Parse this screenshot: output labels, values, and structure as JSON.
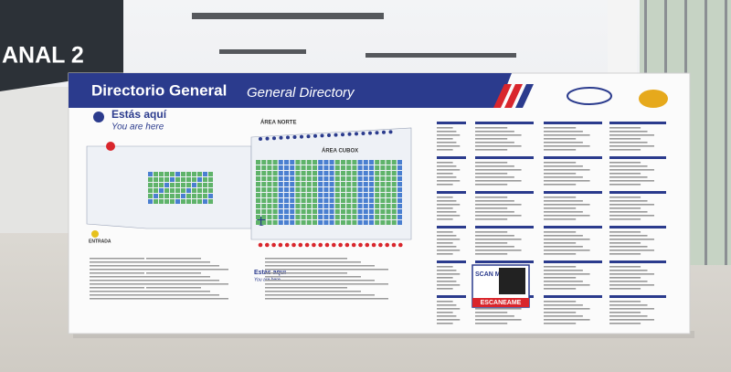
{
  "sign": {
    "text": "ANAL 2"
  },
  "board": {
    "title": "Directorio General",
    "subtitle": "General Directory",
    "you_are_here": {
      "es": "Estás aquí",
      "en": "You are here"
    },
    "map": {
      "north": "ÁREA NORTE",
      "center": "ÁREA CUBOX",
      "entrance": "ENTRADA"
    },
    "lower_you_are_here": {
      "es": "Estás aquí",
      "en": "You are here"
    },
    "qr": {
      "scan": "SCAN ME",
      "label": "ESCANEAME"
    }
  }
}
